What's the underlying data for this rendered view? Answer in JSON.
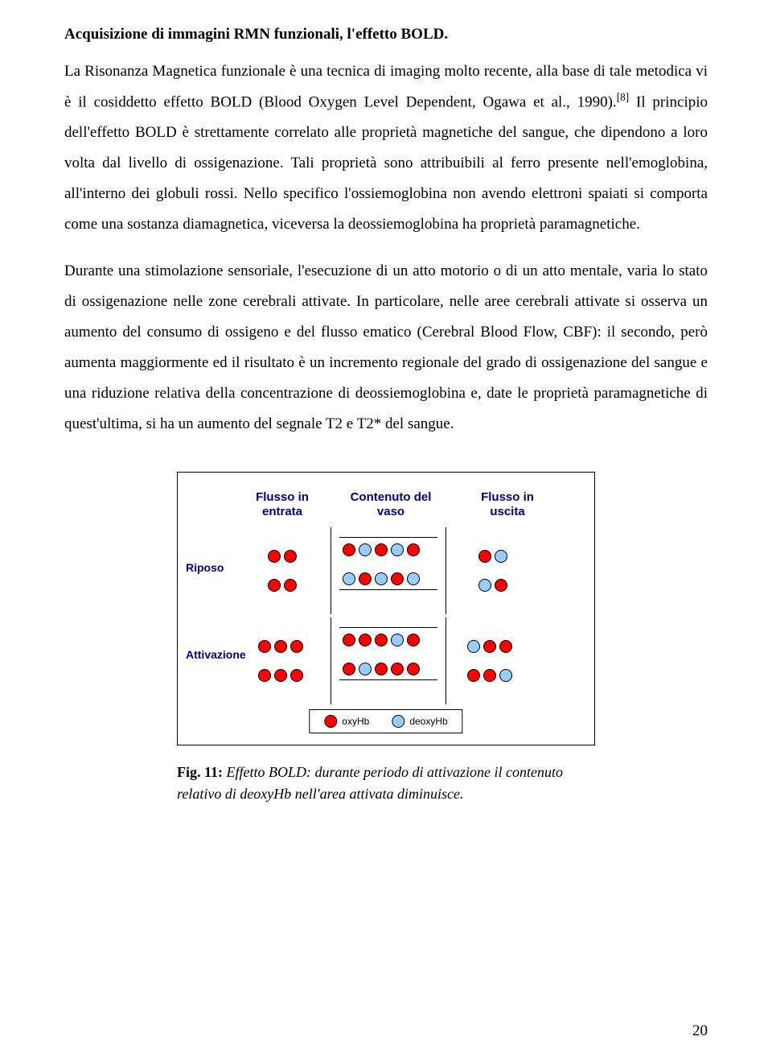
{
  "heading": "Acquisizione di immagini RMN funzionali, l'effetto BOLD.",
  "paragraphs": {
    "p1a": "La Risonanza Magnetica funzionale è una tecnica di imaging molto recente, alla base di tale metodica vi è il cosiddetto effetto BOLD (Blood Oxygen Level Dependent, Ogawa et al., 1990).",
    "p1b": "Il principio dell'effetto BOLD è strettamente correlato alle proprietà magnetiche del sangue, che dipendono a loro volta dal livello di ossigenazione. Tali proprietà sono attribuibili al ferro presente nell'emoglobina, all'interno dei globuli rossi. Nello specifico l'ossiemoglobina non avendo elettroni spaiati si comporta come una sostanza diamagnetica, viceversa la deossiemoglobina ha proprietà paramagnetiche.",
    "p2": "Durante una stimolazione sensoriale, l'esecuzione di un atto motorio o di un atto mentale, varia lo stato di ossigenazione nelle zone cerebrali attivate. In particolare, nelle aree cerebrali attivate si osserva un aumento del consumo di ossigeno e del flusso ematico (Cerebral Blood Flow, CBF): il secondo, però aumenta maggiormente ed il risultato è un incremento regionale del grado di ossigenazione del sangue e una riduzione relativa della concentrazione di deossiemoglobina e, date le proprietà paramagnetiche di quest'ultima, si ha un aumento del segnale T2 e T2* del sangue."
  },
  "citation": "[8]",
  "figure": {
    "columns": {
      "left": "Flusso in entrata",
      "mid": "Contenuto del vaso",
      "right": "Flusso in uscita"
    },
    "rows": {
      "top": "Riposo",
      "bottom": "Attivazione"
    },
    "legend": {
      "oxy": "oxyHb",
      "deoxy": "deoxyHb"
    },
    "colors": {
      "oxy": "#ff0000",
      "deoxy": "#99ccff",
      "label": "#000080",
      "border": "#000000",
      "bg": "#ffffff"
    },
    "states": {
      "riposo": {
        "inflow": [
          [
            "red",
            "red"
          ],
          [
            "red",
            "red"
          ]
        ],
        "vessel": [
          [
            "red",
            "blue",
            "red",
            "blue",
            "red"
          ],
          [
            "blue",
            "red",
            "blue",
            "red",
            "blue"
          ]
        ],
        "outflow": [
          [
            "red",
            "blue"
          ],
          [
            "blue",
            "red"
          ]
        ]
      },
      "attivazione": {
        "inflow": [
          [
            "red",
            "red",
            "red"
          ],
          [
            "red",
            "red",
            "red"
          ]
        ],
        "vessel": [
          [
            "red",
            "red",
            "red",
            "blue",
            "red"
          ],
          [
            "red",
            "blue",
            "red",
            "red",
            "red"
          ]
        ],
        "outflow": [
          [
            "blue",
            "red",
            "red"
          ],
          [
            "red",
            "red",
            "blue"
          ]
        ]
      }
    }
  },
  "caption": {
    "label": "Fig. 11:",
    "text": "Effetto BOLD: durante  periodo di attivazione il contenuto relativo di deoxyHb nell'area attivata diminuisce."
  },
  "page_number": "20"
}
